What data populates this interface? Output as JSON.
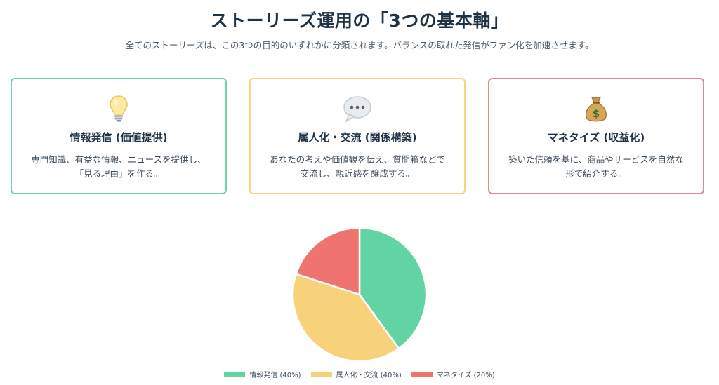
{
  "header": {
    "title": "ストーリーズ運用の「3つの基本軸」",
    "subtitle": "全てのストーリーズは、この3つの目的のいずれかに分類されます。バランスの取れた発信がファン化を加速させます。"
  },
  "cards": [
    {
      "icon": "lightbulb-icon",
      "title": "情報発信 (価値提供)",
      "desc": "専門知識、有益な情報、ニュースを提供し、「見る理由」を作る。",
      "border": "#6fd3a6"
    },
    {
      "icon": "speech-bubble-icon",
      "title": "属人化・交流 (関係構築)",
      "desc": "あなたの考えや価値観を伝え、質問箱などで交流し、親近感を醸成する。",
      "border": "#f5d67e"
    },
    {
      "icon": "money-bag-icon",
      "title": "マネタイズ (収益化)",
      "desc": "築いた信頼を基に、商品やサービスを自然な形で紹介する。",
      "border": "#e58a88"
    }
  ],
  "chart_data": {
    "type": "pie",
    "categories": [
      "情報発信 (40%)",
      "属人化・交流 (40%)",
      "マネタイズ (20%)"
    ],
    "values": [
      40,
      40,
      20
    ],
    "colors": [
      "#62d3a2",
      "#f7d27a",
      "#ef7470"
    ],
    "legend": "bottom"
  }
}
